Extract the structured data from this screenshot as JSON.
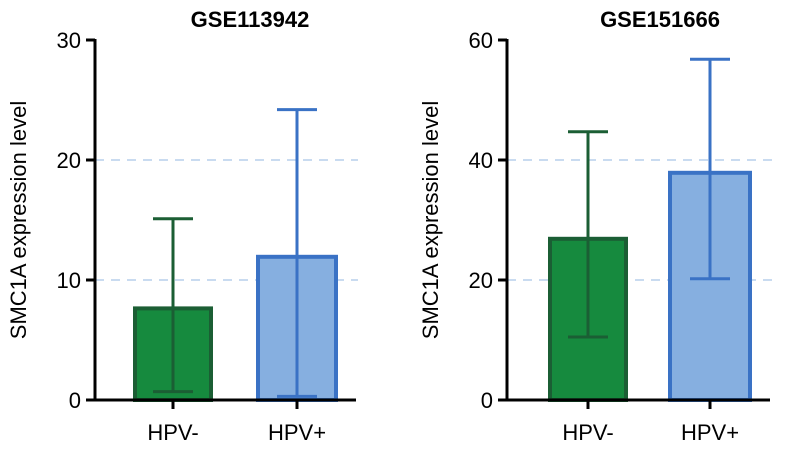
{
  "chart_data": [
    {
      "type": "bar",
      "title": "GSE113942",
      "ylabel": "SMC1A expression level",
      "xlabel": "",
      "ylim": [
        0,
        30
      ],
      "yticks": [
        0,
        10,
        20,
        30
      ],
      "grid_values": [
        10,
        20
      ],
      "categories": [
        "HPV-",
        "HPV+"
      ],
      "values": [
        7.8,
        12.1
      ],
      "error_low": [
        0.7,
        0.3
      ],
      "error_high": [
        15.1,
        24.2
      ]
    },
    {
      "type": "bar",
      "title": "GSE151666",
      "ylabel": "SMC1A expression level",
      "xlabel": "",
      "ylim": [
        0,
        60
      ],
      "yticks": [
        0,
        20,
        40,
        60
      ],
      "grid_values": [
        20,
        40
      ],
      "categories": [
        "HPV-",
        "HPV+"
      ],
      "values": [
        27.2,
        38.2
      ],
      "error_low": [
        10.5,
        20.2
      ],
      "error_high": [
        44.7,
        56.8
      ]
    }
  ],
  "colors": {
    "hpv_neg_fill": "#168a3e",
    "hpv_neg_stroke": "#1b5e34",
    "hpv_pos_fill": "#86afe0",
    "hpv_pos_stroke": "#3a72c5",
    "grid": "#c9dbf0"
  }
}
